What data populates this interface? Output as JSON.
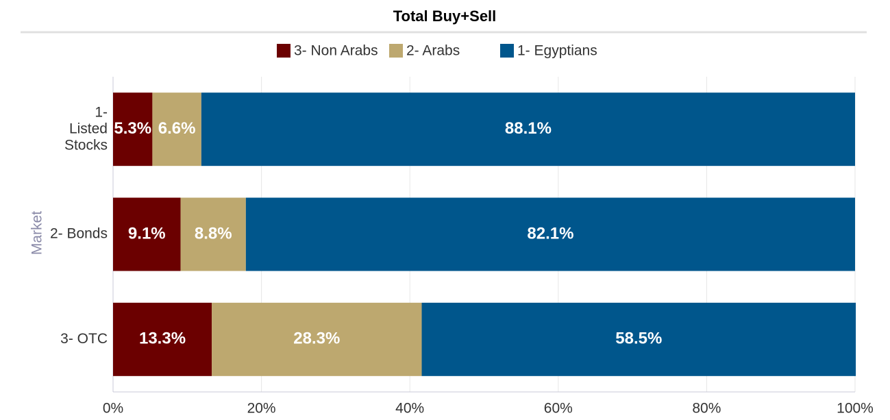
{
  "chart_data": {
    "type": "stacked-barh",
    "title": "Total Buy+Sell",
    "ylabel": "Market",
    "categories": [
      "1- Listed Stocks",
      "2- Bonds",
      "3- OTC"
    ],
    "series": [
      {
        "name": "3- Non Arabs",
        "color": "#6b0000",
        "values": [
          5.3,
          9.1,
          13.3
        ],
        "value_labels": [
          "5.3%",
          "9.1%",
          "13.3%"
        ]
      },
      {
        "name": "2- Arabs",
        "color": "#bda86f",
        "values": [
          6.6,
          8.8,
          28.3
        ],
        "value_labels": [
          "6.6%",
          "8.8%",
          "28.3%"
        ]
      },
      {
        "name": "1- Egyptians",
        "color": "#00568c",
        "values": [
          88.1,
          82.1,
          58.5
        ],
        "value_labels": [
          "88.1%",
          "82.1%",
          "58.5%"
        ]
      }
    ],
    "xlim": [
      0,
      100
    ],
    "xticks": [
      {
        "value": 0,
        "label": "0%"
      },
      {
        "value": 20,
        "label": "20%"
      },
      {
        "value": 40,
        "label": "40%"
      },
      {
        "value": 60,
        "label": "60%"
      },
      {
        "value": 80,
        "label": "80%"
      },
      {
        "value": 100,
        "label": "100%"
      }
    ],
    "grid": true,
    "legend": "top"
  }
}
